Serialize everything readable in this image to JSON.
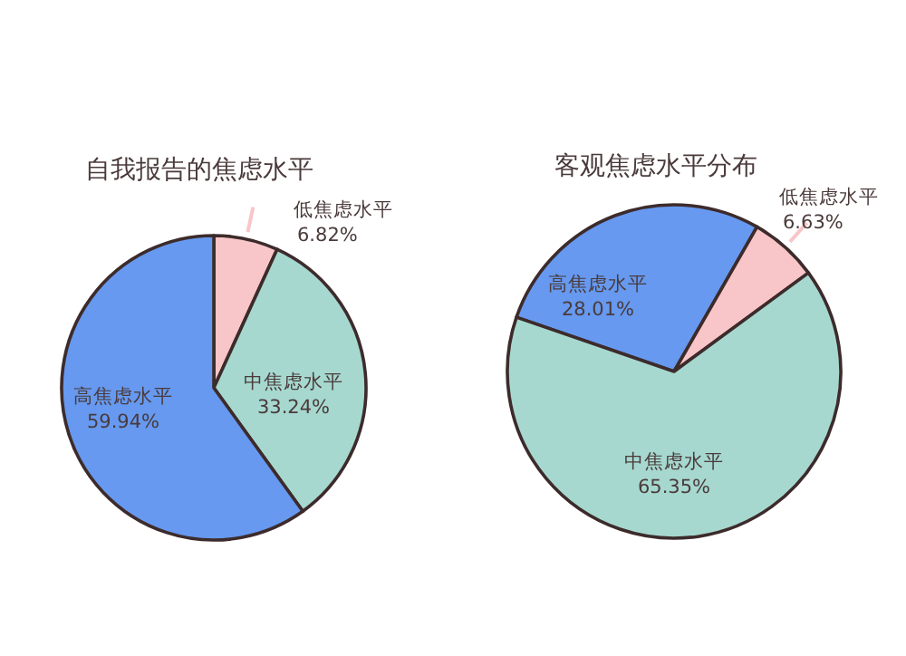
{
  "chart_data": [
    {
      "type": "pie",
      "title": "自我报告的焦虑水平",
      "categories": [
        "低焦虑水平",
        "中焦虑水平",
        "高焦虑水平"
      ],
      "values": [
        6.82,
        33.24,
        59.94
      ],
      "value_labels": [
        "6.82%",
        "33.24%",
        "59.94%"
      ],
      "colors": [
        "#f8c6c8",
        "#a6d8cf",
        "#6699ef"
      ]
    },
    {
      "type": "pie",
      "title": "客观焦虑水平分布",
      "categories": [
        "高焦虑水平",
        "低焦虑水平",
        "中焦虑水平"
      ],
      "values": [
        28.01,
        6.63,
        65.35
      ],
      "value_labels": [
        "28.01%",
        "6.63%",
        "65.35%"
      ],
      "colors": [
        "#6699ef",
        "#f8c6c8",
        "#a6d8cf"
      ]
    }
  ]
}
